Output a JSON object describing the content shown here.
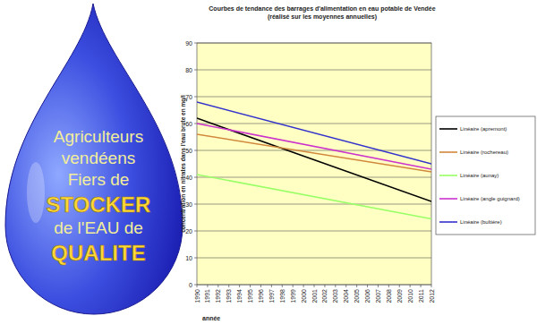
{
  "banner": {
    "lines": [
      "Agriculteurs",
      "vendéens",
      "Fiers de",
      "STOCKER",
      "de l'EAU de",
      "QUALITE"
    ]
  },
  "chart_data": {
    "type": "line",
    "title": "Courbes de tendance des barrages d'alimentation en eau potable de Vendée (réalisé sur les moyennes annuelles)",
    "x_label": "année",
    "y_label": "concentration en nitrates dans l'eau brute en mg/l",
    "x": [
      1990,
      2012
    ],
    "xlim": [
      1990,
      2012
    ],
    "xticks": [
      1990,
      1991,
      1992,
      1993,
      1994,
      1995,
      1996,
      1997,
      1998,
      1999,
      2000,
      2001,
      2002,
      2003,
      2004,
      2005,
      2006,
      2007,
      2008,
      2009,
      2010,
      2011,
      2012
    ],
    "ylim": [
      0,
      90
    ],
    "yticks": [
      0,
      10,
      20,
      30,
      40,
      50,
      60,
      70,
      80,
      90
    ],
    "grid": true,
    "legend": "right",
    "series": [
      {
        "name": "Linéaire (apremont)",
        "color": "#000000",
        "values": [
          62,
          31
        ]
      },
      {
        "name": "Linéaire (rochereau)",
        "color": "#d2883c",
        "values": [
          56,
          42
        ]
      },
      {
        "name": "Linéaire (aunay)",
        "color": "#99ff66",
        "values": [
          41,
          24.5
        ]
      },
      {
        "name": "Linéaire (angle guignard)",
        "color": "#cc33cc",
        "values": [
          60,
          43
        ]
      },
      {
        "name": "Linéaire (bultière)",
        "color": "#3333cc",
        "values": [
          68,
          45
        ]
      }
    ]
  }
}
